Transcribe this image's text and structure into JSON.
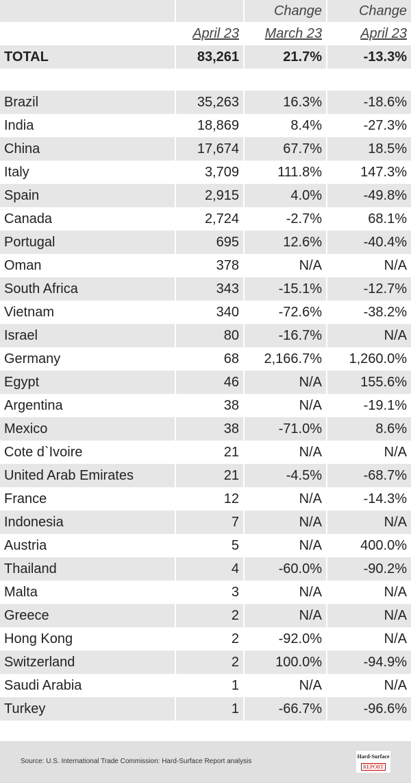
{
  "header": {
    "change_labels": [
      "Change",
      "Change"
    ],
    "columns": [
      "April 23",
      "March 23",
      "April 23"
    ]
  },
  "total": {
    "label": "TOTAL",
    "values": [
      "83,261",
      "21.7%",
      "-13.3%"
    ]
  },
  "rows": [
    [
      "Brazil",
      "35,263",
      "16.3%",
      "-18.6%"
    ],
    [
      "India",
      "18,869",
      "8.4%",
      "-27.3%"
    ],
    [
      "China",
      "17,674",
      "67.7%",
      "18.5%"
    ],
    [
      "Italy",
      "3,709",
      "111.8%",
      "147.3%"
    ],
    [
      "Spain",
      "2,915",
      "4.0%",
      "-49.8%"
    ],
    [
      "Canada",
      "2,724",
      "-2.7%",
      "68.1%"
    ],
    [
      "Portugal",
      "695",
      "12.6%",
      "-40.4%"
    ],
    [
      "Oman",
      "378",
      "N/A",
      "N/A"
    ],
    [
      "South Africa",
      "343",
      "-15.1%",
      "-12.7%"
    ],
    [
      "Vietnam",
      "340",
      "-72.6%",
      "-38.2%"
    ],
    [
      "Israel",
      "80",
      "-16.7%",
      "N/A"
    ],
    [
      "Germany",
      "68",
      "2,166.7%",
      "1,260.0%"
    ],
    [
      "Egypt",
      "46",
      "N/A",
      "155.6%"
    ],
    [
      "Argentina",
      "38",
      "N/A",
      "-19.1%"
    ],
    [
      "Mexico",
      "38",
      "-71.0%",
      "8.6%"
    ],
    [
      "Cote d`Ivoire",
      "21",
      "N/A",
      "N/A"
    ],
    [
      "United Arab Emirates",
      "21",
      "-4.5%",
      "-68.7%"
    ],
    [
      "France",
      "12",
      "N/A",
      "-14.3%"
    ],
    [
      "Indonesia",
      "7",
      "N/A",
      "N/A"
    ],
    [
      "Austria",
      "5",
      "N/A",
      "400.0%"
    ],
    [
      "Thailand",
      "4",
      "-60.0%",
      "-90.2%"
    ],
    [
      "Malta",
      "3",
      "N/A",
      "N/A"
    ],
    [
      "Greece",
      "2",
      "N/A",
      "N/A"
    ],
    [
      "Hong Kong",
      "2",
      "-92.0%",
      "N/A"
    ],
    [
      "Switzerland",
      "2",
      "100.0%",
      "-94.9%"
    ],
    [
      "Saudi Arabia",
      "1",
      "N/A",
      "N/A"
    ],
    [
      "Turkey",
      "1",
      "-66.7%",
      "-96.6%"
    ]
  ],
  "footer": {
    "source": "Source: U.S. International Trade Commission: Hard-Surface Report analysis",
    "logo": [
      "Hard-Surface",
      "REPORT"
    ]
  }
}
